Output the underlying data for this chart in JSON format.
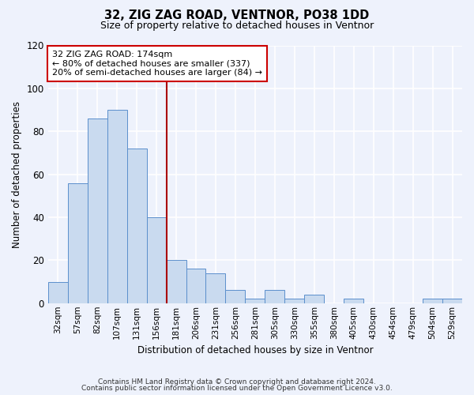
{
  "title": "32, ZIG ZAG ROAD, VENTNOR, PO38 1DD",
  "subtitle": "Size of property relative to detached houses in Ventnor",
  "xlabel": "Distribution of detached houses by size in Ventnor",
  "ylabel": "Number of detached properties",
  "categories": [
    "32sqm",
    "57sqm",
    "82sqm",
    "107sqm",
    "131sqm",
    "156sqm",
    "181sqm",
    "206sqm",
    "231sqm",
    "256sqm",
    "281sqm",
    "305sqm",
    "330sqm",
    "355sqm",
    "380sqm",
    "405sqm",
    "430sqm",
    "454sqm",
    "479sqm",
    "504sqm",
    "529sqm"
  ],
  "values": [
    10,
    56,
    86,
    90,
    72,
    40,
    20,
    16,
    14,
    6,
    2,
    6,
    2,
    4,
    0,
    2,
    0,
    0,
    0,
    2,
    2
  ],
  "bar_color": "#c9daef",
  "bar_edge_color": "#5b8fcc",
  "background_color": "#eef2fc",
  "ylim": [
    0,
    120
  ],
  "yticks": [
    0,
    20,
    40,
    60,
    80,
    100,
    120
  ],
  "vline_color": "#aa0000",
  "annotation_title": "32 ZIG ZAG ROAD: 174sqm",
  "annotation_line1": "← 80% of detached houses are smaller (337)",
  "annotation_line2": "20% of semi-detached houses are larger (84) →",
  "annotation_box_color": "white",
  "annotation_box_edge_color": "#cc0000",
  "footer1": "Contains HM Land Registry data © Crown copyright and database right 2024.",
  "footer2": "Contains public sector information licensed under the Open Government Licence v3.0."
}
